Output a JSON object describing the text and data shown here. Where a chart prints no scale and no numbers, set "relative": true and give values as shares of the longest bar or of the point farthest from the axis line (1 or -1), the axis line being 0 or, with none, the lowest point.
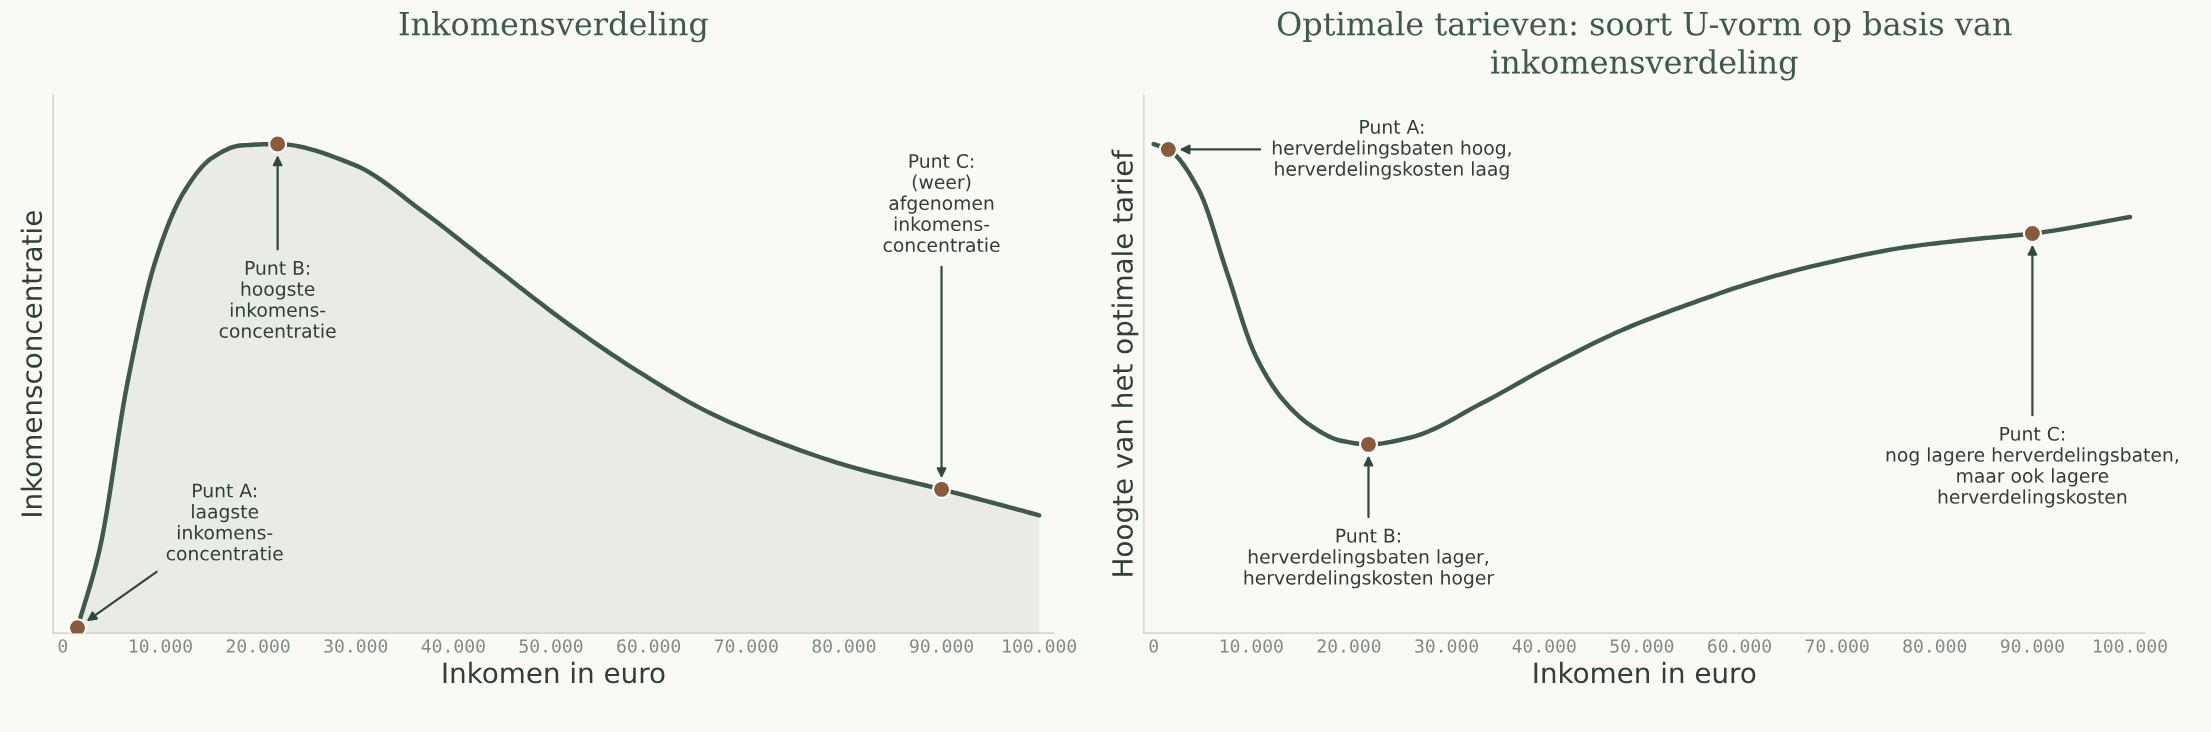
{
  "chart_data": [
    {
      "type": "area",
      "title": "Inkomensverdeling",
      "xlabel": "Inkomen in euro",
      "ylabel": "Inkomensconcentratie",
      "relative": true,
      "grid": false,
      "legend": false,
      "xlim": [
        -1000,
        101500
      ],
      "xticks": [
        0,
        {
          "value": 10000,
          "label": "10.000"
        },
        {
          "value": 20000,
          "label": "20.000"
        },
        {
          "value": 30000,
          "label": "30.000"
        },
        {
          "value": 40000,
          "label": "40.000"
        },
        {
          "value": 50000,
          "label": "50.000"
        },
        {
          "value": 60000,
          "label": "60.000"
        },
        {
          "value": 70000,
          "label": "70.000"
        },
        {
          "value": 80000,
          "label": "80.000"
        },
        {
          "value": 90000,
          "label": "90.000"
        },
        {
          "value": 100000,
          "label": "100.000"
        }
      ],
      "series": [
        {
          "color": "#3d5a4a",
          "x": [
            1500,
            3800,
            6600,
            9500,
            12400,
            15300,
            18200,
            22000,
            29800,
            37000,
            44200,
            51500,
            58700,
            65900,
            73100,
            80400,
            90000,
            94800,
            100000
          ],
          "values": [
            0.011,
            0.174,
            0.51,
            0.762,
            0.902,
            0.972,
            0.997,
            1,
            0.958,
            0.86,
            0.748,
            0.636,
            0.538,
            0.454,
            0.392,
            0.342,
            0.294,
            0.269,
            0.241
          ]
        },
        {
          "type": "scatter",
          "color": "#8b5a3a",
          "marker": "circle",
          "x": [
            1500,
            22000,
            90000
          ],
          "values": [
            0.011,
            1,
            0.294
          ]
        }
      ],
      "annotations": [
        "Punt A:\nlaagste\ninkomens-\nconcentratie",
        "Punt B:\nhoogste\ninkomens-\nconcentratie",
        "Punt C:\n(weer)\nafgenomen\ninkomens-\nconcentratie"
      ]
    },
    {
      "type": "line",
      "title": "Optimale tarieven: soort U-vorm op basis van inkomensverdeling",
      "xlabel": "Inkomen in euro",
      "ylabel": "Hoogte van het optimale tarief",
      "relative": true,
      "grid": false,
      "legend": false,
      "xlim": [
        -1000,
        101500
      ],
      "xticks": [
        0,
        {
          "value": 10000,
          "label": "10.000"
        },
        {
          "value": 20000,
          "label": "20.000"
        },
        {
          "value": 30000,
          "label": "30.000"
        },
        {
          "value": 40000,
          "label": "40.000"
        },
        {
          "value": 50000,
          "label": "50.000"
        },
        {
          "value": 60000,
          "label": "60.000"
        },
        {
          "value": 70000,
          "label": "70.000"
        },
        {
          "value": 80000,
          "label": "80.000"
        },
        {
          "value": 90000,
          "label": "90.000"
        },
        {
          "value": 100000,
          "label": "100.000"
        }
      ],
      "series": [
        {
          "color": "#3d5a4a",
          "x": [
            0,
            1500,
            4600,
            7500,
            10400,
            13300,
            16200,
            19100,
            22000,
            26300,
            33600,
            40800,
            48000,
            55300,
            62500,
            69800,
            77000,
            84200,
            90000,
            100000
          ],
          "values": [
            1,
            0.989,
            0.907,
            0.738,
            0.569,
            0.476,
            0.423,
            0.394,
            0.386,
            0.4,
            0.47,
            0.549,
            0.62,
            0.676,
            0.724,
            0.761,
            0.789,
            0.806,
            0.817,
            0.851
          ]
        },
        {
          "type": "scatter",
          "color": "#8b5a3a",
          "marker": "circle",
          "x": [
            1500,
            22000,
            90000
          ],
          "values": [
            0.989,
            0.386,
            0.817
          ]
        }
      ],
      "annotations": [
        "Punt A:\nherverdelingsbaten hoog,\nherverdelingskosten laag",
        "Punt B:\nherverdelingsbaten lager,\nherverdelingskosten hoger",
        "Punt C:\nnog lagere herverdelingsbaten,\nmaar ook lagere\nherverdelingskosten"
      ]
    }
  ]
}
